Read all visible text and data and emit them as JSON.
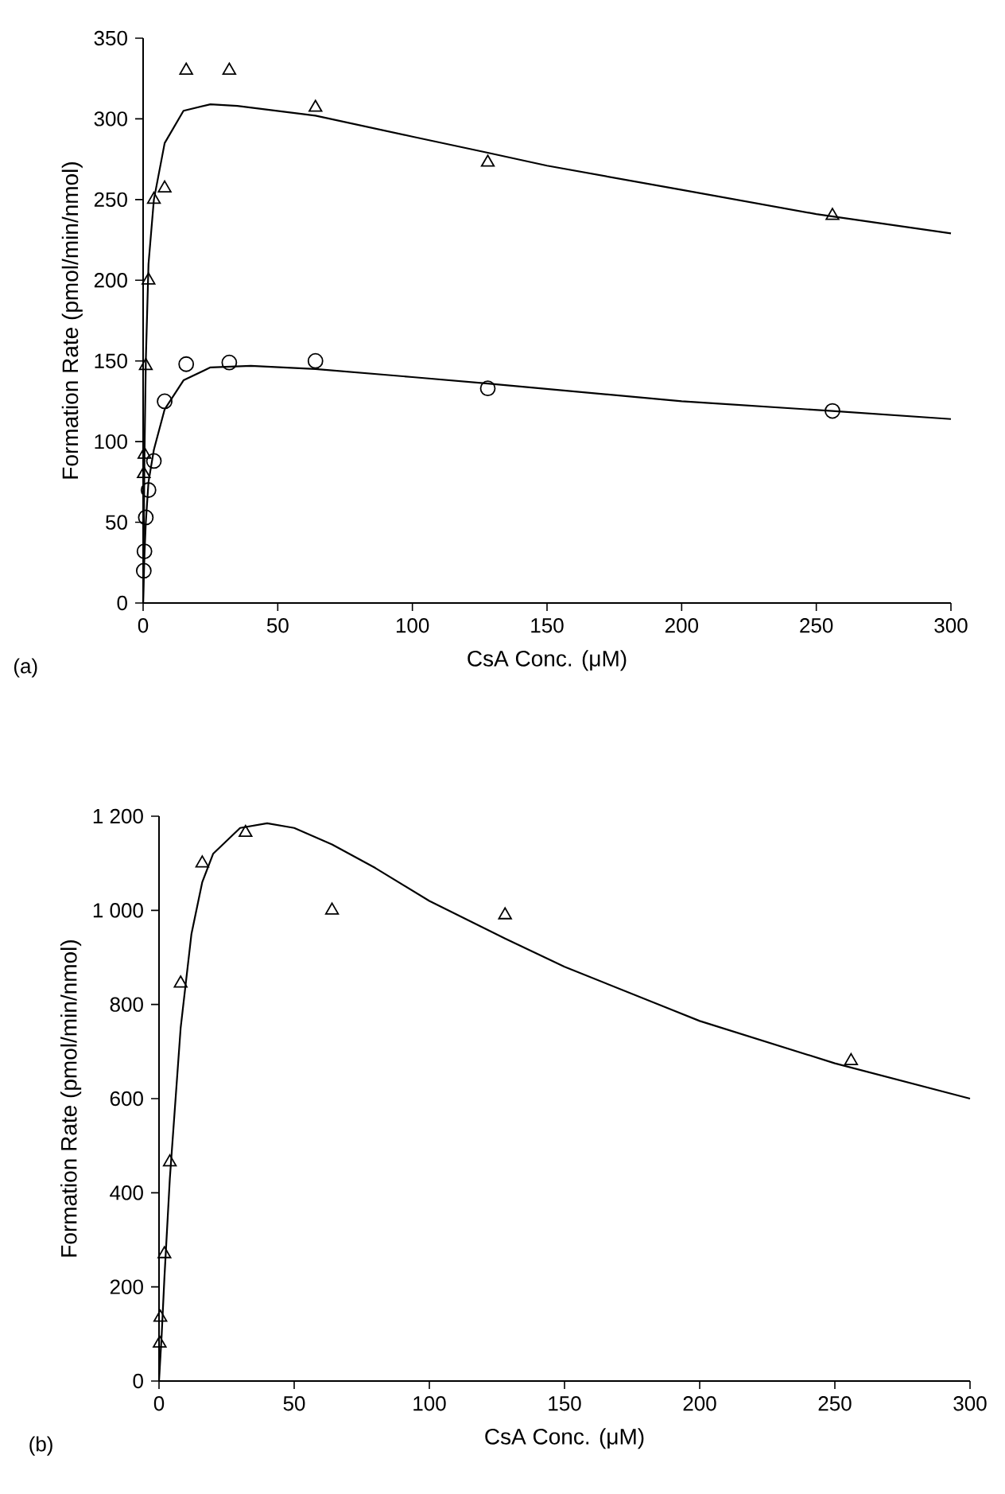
{
  "chart_data": [
    {
      "type": "scatter",
      "xlabel": "CsA Conc. (μM)",
      "ylabel": "Formation Rate (pmol/min/nmol)",
      "annotations": [
        "(a)"
      ],
      "xlim": [
        0,
        300
      ],
      "ylim": [
        0,
        350
      ],
      "xticks": [
        0,
        50,
        100,
        150,
        200,
        250,
        300
      ],
      "yticks": [
        0,
        50,
        100,
        150,
        200,
        250,
        300,
        350
      ],
      "series": [
        {
          "marker": "triangle",
          "color": "#000000",
          "x": [
            0.25,
            0.5,
            1,
            2,
            4,
            8,
            16,
            32,
            64,
            128,
            256
          ],
          "values": [
            80,
            92,
            147,
            200,
            250,
            257,
            330,
            330,
            307,
            273,
            240
          ]
        },
        {
          "marker": "circle",
          "color": "#000000",
          "x": [
            0.25,
            0.5,
            1,
            2,
            4,
            8,
            16,
            32,
            64,
            128,
            256
          ],
          "values": [
            20,
            32,
            53,
            70,
            88,
            125,
            148,
            149,
            150,
            133,
            119
          ]
        },
        {
          "type": "line",
          "marker": "none",
          "line_style": "solid",
          "color": "#000000",
          "x": [
            0,
            0.5,
            1,
            2,
            4,
            8,
            15,
            25,
            35,
            64,
            100,
            128,
            150,
            200,
            250,
            300
          ],
          "values": [
            0,
            90,
            150,
            210,
            250,
            285,
            305,
            309,
            308,
            302,
            289,
            279,
            271,
            256,
            241,
            229
          ]
        },
        {
          "type": "line",
          "marker": "none",
          "line_style": "solid",
          "color": "#000000",
          "x": [
            0,
            0.5,
            1,
            2,
            4,
            8,
            15,
            25,
            40,
            64,
            100,
            128,
            200,
            256,
            300
          ],
          "values": [
            0,
            30,
            50,
            75,
            95,
            120,
            138,
            146,
            147,
            145,
            140,
            136,
            125,
            119,
            114
          ]
        }
      ]
    },
    {
      "type": "scatter",
      "xlabel": "CsA Conc. (μM)",
      "ylabel": "Formation Rate (pmol/min/nmol)",
      "annotations": [
        "(b)"
      ],
      "xlim": [
        0,
        300
      ],
      "ylim": [
        0,
        1200
      ],
      "xticks": [
        0,
        50,
        100,
        150,
        200,
        250,
        300
      ],
      "yticks": [
        0,
        200,
        400,
        600,
        800,
        {
          "value": 1000,
          "label": "1 000"
        },
        {
          "value": 1200,
          "label": "1 200"
        }
      ],
      "series": [
        {
          "marker": "triangle",
          "color": "#000000",
          "x": [
            0.25,
            0.5,
            2,
            4,
            8,
            16,
            32,
            64,
            128,
            256
          ],
          "values": [
            80,
            135,
            270,
            465,
            845,
            1100,
            1165,
            1000,
            990,
            680
          ]
        },
        {
          "type": "line",
          "marker": "none",
          "line_style": "solid",
          "color": "#000000",
          "x": [
            0,
            1,
            2,
            4,
            8,
            12,
            16,
            20,
            30,
            40,
            50,
            64,
            80,
            100,
            128,
            150,
            200,
            250,
            300
          ],
          "values": [
            0,
            100,
            220,
            430,
            750,
            950,
            1060,
            1120,
            1175,
            1185,
            1175,
            1140,
            1090,
            1020,
            940,
            880,
            765,
            675,
            600
          ]
        }
      ]
    }
  ]
}
